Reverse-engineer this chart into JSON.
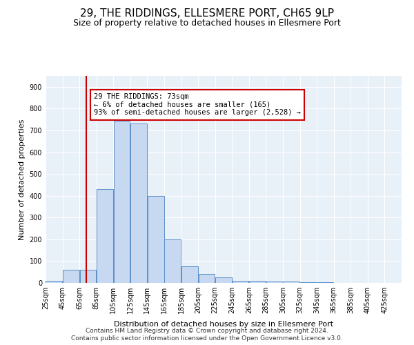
{
  "title": "29, THE RIDDINGS, ELLESMERE PORT, CH65 9LP",
  "subtitle": "Size of property relative to detached houses in Ellesmere Port",
  "xlabel": "Distribution of detached houses by size in Ellesmere Port",
  "ylabel": "Number of detached properties",
  "bin_labels": [
    "25sqm",
    "45sqm",
    "65sqm",
    "85sqm",
    "105sqm",
    "125sqm",
    "145sqm",
    "165sqm",
    "185sqm",
    "205sqm",
    "225sqm",
    "245sqm",
    "265sqm",
    "285sqm",
    "305sqm",
    "325sqm",
    "345sqm",
    "365sqm",
    "385sqm",
    "405sqm",
    "425sqm"
  ],
  "bin_edges": [
    25,
    45,
    65,
    85,
    105,
    125,
    145,
    165,
    185,
    205,
    225,
    245,
    265,
    285,
    305,
    325,
    345,
    365,
    385,
    405,
    425,
    445
  ],
  "values": [
    10,
    60,
    60,
    430,
    745,
    730,
    400,
    200,
    75,
    40,
    25,
    10,
    10,
    5,
    5,
    3,
    2,
    1,
    1,
    1,
    1
  ],
  "bar_color": "#c7d9f0",
  "bar_edge_color": "#5b8fc9",
  "vline_x": 73,
  "vline_color": "#cc0000",
  "annotation_text": "29 THE RIDDINGS: 73sqm\n← 6% of detached houses are smaller (165)\n93% of semi-detached houses are larger (2,528) →",
  "annotation_box_color": "#ffffff",
  "annotation_box_edge": "#cc0000",
  "ylim": [
    0,
    950
  ],
  "yticks": [
    0,
    100,
    200,
    300,
    400,
    500,
    600,
    700,
    800,
    900
  ],
  "footer1": "Contains HM Land Registry data © Crown copyright and database right 2024.",
  "footer2": "Contains public sector information licensed under the Open Government Licence v3.0.",
  "bg_color": "#e8f0f8",
  "title_fontsize": 11,
  "subtitle_fontsize": 9,
  "axis_label_fontsize": 8,
  "tick_fontsize": 7,
  "annotation_fontsize": 7.5,
  "footer_fontsize": 6.5
}
